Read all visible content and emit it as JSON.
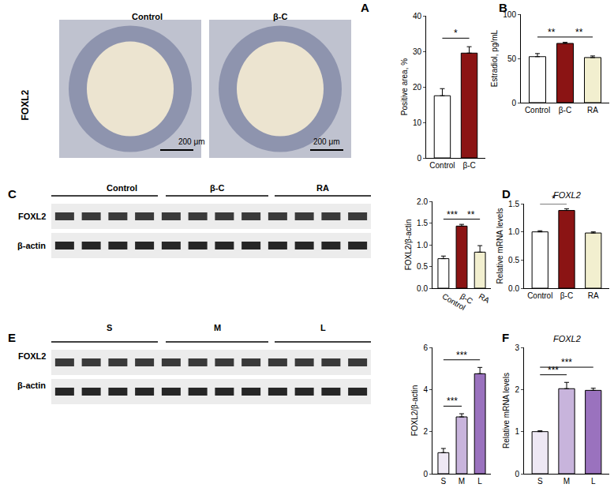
{
  "chart_data": [
    {
      "type": "bar",
      "categories": [
        "Control",
        "β-C"
      ],
      "values": [
        17.5,
        29.5
      ],
      "errors": [
        2.0,
        1.8
      ],
      "colors": [
        "#ffffff",
        "#8b1414"
      ],
      "ylabel": "Positive area, %",
      "ylim": [
        0,
        40
      ],
      "yticks": [
        0,
        10,
        20,
        30,
        40
      ],
      "significance": [
        {
          "from": "Control",
          "to": "β-C",
          "label": "*"
        }
      ]
    },
    {
      "type": "bar",
      "categories": [
        "Control",
        "β-C",
        "RA"
      ],
      "values": [
        52,
        67,
        51
      ],
      "errors": [
        3.5,
        1.2,
        1.8
      ],
      "colors": [
        "#ffffff",
        "#8b1414",
        "#f2efcf"
      ],
      "ylabel": "Estradiol, pg/mL",
      "ylim": [
        0,
        100
      ],
      "yticks": [
        0,
        50,
        100
      ],
      "significance": [
        {
          "from": "Control",
          "to": "β-C",
          "label": "**"
        },
        {
          "from": "β-C",
          "to": "RA",
          "label": "**"
        }
      ]
    },
    {
      "type": "bar",
      "categories": [
        "Control",
        "β-C",
        "RA"
      ],
      "values": [
        0.68,
        1.43,
        0.83
      ],
      "errors": [
        0.06,
        0.04,
        0.15
      ],
      "colors": [
        "#ffffff",
        "#8b1414",
        "#f2efcf"
      ],
      "ylabel": "FOXL2/β-actin",
      "ylim": [
        0,
        2
      ],
      "yticks": [
        {
          "value": 0,
          "label": "0.0"
        },
        0.5,
        {
          "value": 1,
          "label": "1.0"
        },
        1.5,
        {
          "value": 2,
          "label": "2.0"
        }
      ],
      "significance": [
        {
          "from": "Control",
          "to": "β-C",
          "label": "***"
        },
        {
          "from": "β-C",
          "to": "RA",
          "label": "**"
        }
      ]
    },
    {
      "type": "bar",
      "title": "FOXL2",
      "categories": [
        "Control",
        "β-C",
        "RA"
      ],
      "values": [
        1.0,
        1.38,
        0.98
      ],
      "errors": [
        0.02,
        0.03,
        0.02
      ],
      "colors": [
        "#ffffff",
        "#8b1414",
        "#f2efcf"
      ],
      "ylabel": "Relative mRNA levels",
      "ylim": [
        0,
        1.5
      ],
      "yticks": [
        {
          "value": 0,
          "label": "0.0"
        },
        0.5,
        {
          "value": 1,
          "label": "1.0"
        },
        1.5
      ],
      "significance": [
        {
          "from": "Control",
          "to": "β-C",
          "label": "*"
        }
      ]
    },
    {
      "type": "bar",
      "categories": [
        "S",
        "M",
        "L"
      ],
      "values": [
        1.0,
        2.7,
        4.75
      ],
      "errors": [
        0.2,
        0.15,
        0.3
      ],
      "colors": [
        "#eee8f4",
        "#c8b4dc",
        "#9a72be"
      ],
      "ylabel": "FOXL2/β-actin",
      "ylim": [
        0,
        6
      ],
      "yticks": [
        0,
        2,
        4,
        6
      ],
      "significance": [
        {
          "from": "S",
          "to": "M",
          "label": "***"
        },
        {
          "from": "S",
          "to": "L",
          "label": "***"
        }
      ]
    },
    {
      "type": "bar",
      "title": "FOXL2",
      "categories": [
        "S",
        "M",
        "L"
      ],
      "values": [
        1.0,
        2.02,
        1.98
      ],
      "errors": [
        0.02,
        0.15,
        0.05
      ],
      "colors": [
        "#eee8f4",
        "#c8b4dc",
        "#9a72be"
      ],
      "ylabel": "Relative mRNA levels",
      "ylim": [
        0,
        3
      ],
      "yticks": [
        0,
        1,
        2,
        3
      ],
      "significance": [
        {
          "from": "S",
          "to": "M",
          "label": "***"
        },
        {
          "from": "S",
          "to": "L",
          "label": "***"
        }
      ]
    }
  ],
  "panel_labels": [
    "A",
    "B",
    "C",
    "D",
    "E",
    "F"
  ],
  "micrographs": {
    "row_label": "FOXL2",
    "images": [
      "Control",
      "β-C"
    ],
    "scale_bar": "200 μm"
  },
  "blots": [
    {
      "groups": [
        "Control",
        "β-C",
        "RA"
      ],
      "rows": [
        "FOXL2",
        "β-actin"
      ],
      "lanes_per_group": 4
    },
    {
      "groups": [
        "S",
        "M",
        "L"
      ],
      "rows": [
        "FOXL2",
        "β-actin"
      ],
      "lanes_per_group": 4
    }
  ]
}
